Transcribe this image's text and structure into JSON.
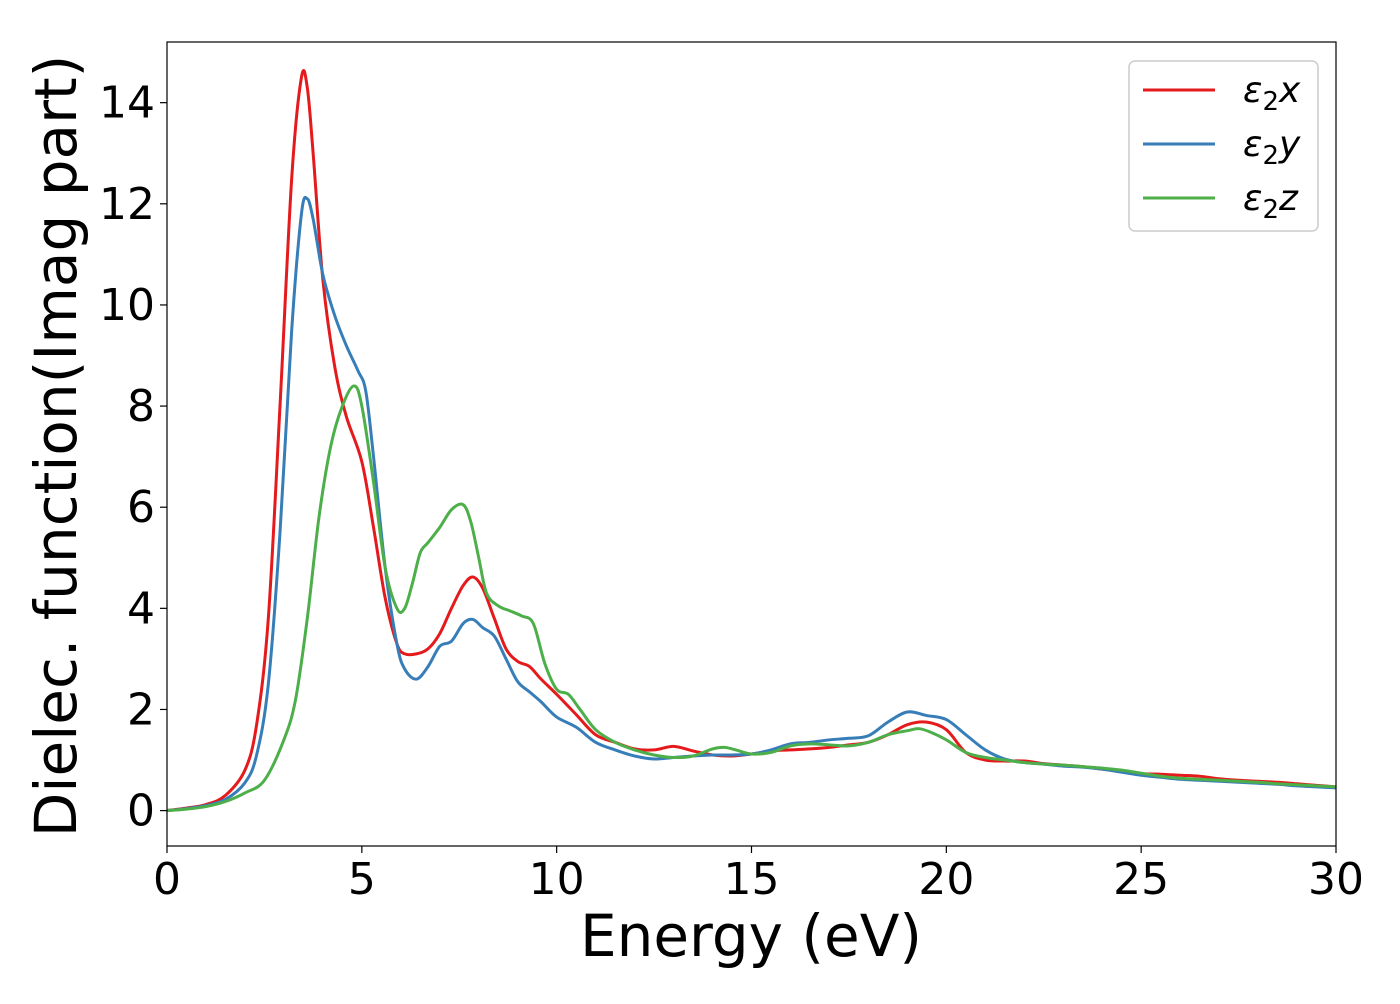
{
  "chart_data": {
    "type": "line",
    "xlabel": "Energy (eV)",
    "ylabel": "Dielec. function(Imag part)",
    "xlim": [
      0,
      30
    ],
    "ylim": [
      -0.7,
      15.2
    ],
    "xticks": [
      0,
      5,
      10,
      15,
      20,
      25,
      30
    ],
    "yticks": [
      0,
      2,
      4,
      6,
      8,
      10,
      12,
      14
    ],
    "grid": false,
    "legend_position": "top-right",
    "series": [
      {
        "name": "ε2x",
        "legend": {
          "symbol": "ε",
          "sub": "2",
          "suffix": "x"
        },
        "color": "#e41a1c",
        "x": [
          0,
          0.5,
          1.0,
          1.5,
          2.0,
          2.3,
          2.6,
          2.9,
          3.2,
          3.45,
          3.6,
          3.75,
          4.0,
          4.3,
          4.6,
          5.0,
          5.3,
          5.6,
          5.9,
          6.1,
          6.4,
          6.7,
          7.0,
          7.3,
          7.6,
          7.85,
          8.1,
          8.4,
          8.7,
          9.0,
          9.3,
          9.6,
          10.0,
          10.5,
          11.0,
          11.5,
          12.0,
          12.5,
          13.0,
          13.5,
          14.0,
          14.5,
          15.0,
          15.5,
          16.0,
          16.5,
          17.0,
          17.5,
          18.0,
          18.5,
          19.0,
          19.5,
          20.0,
          20.5,
          21.0,
          21.5,
          22.0,
          22.5,
          23.0,
          23.5,
          24.0,
          24.5,
          25.0,
          25.5,
          26.0,
          26.5,
          27.0,
          27.5,
          28.0,
          28.5,
          29.0,
          29.5,
          30.0
        ],
        "y": [
          0,
          0.05,
          0.12,
          0.3,
          0.8,
          1.7,
          3.8,
          8.0,
          12.5,
          14.5,
          14.3,
          13.0,
          10.5,
          8.8,
          7.8,
          6.9,
          5.6,
          4.2,
          3.3,
          3.1,
          3.1,
          3.2,
          3.5,
          4.0,
          4.45,
          4.62,
          4.4,
          3.8,
          3.2,
          2.95,
          2.85,
          2.6,
          2.3,
          1.9,
          1.5,
          1.35,
          1.22,
          1.2,
          1.27,
          1.18,
          1.1,
          1.08,
          1.12,
          1.18,
          1.2,
          1.22,
          1.25,
          1.3,
          1.35,
          1.5,
          1.7,
          1.75,
          1.6,
          1.15,
          1.0,
          0.98,
          0.98,
          0.93,
          0.9,
          0.87,
          0.82,
          0.78,
          0.73,
          0.72,
          0.7,
          0.68,
          0.63,
          0.6,
          0.58,
          0.56,
          0.53,
          0.5,
          0.47
        ]
      },
      {
        "name": "ε2y",
        "legend": {
          "symbol": "ε",
          "sub": "2",
          "suffix": "y"
        },
        "color": "#377eb8",
        "x": [
          0,
          0.5,
          1.0,
          1.5,
          2.0,
          2.3,
          2.6,
          2.9,
          3.2,
          3.45,
          3.6,
          3.75,
          4.0,
          4.3,
          4.6,
          4.9,
          5.1,
          5.3,
          5.6,
          5.9,
          6.1,
          6.4,
          6.7,
          7.0,
          7.3,
          7.6,
          7.85,
          8.1,
          8.4,
          8.7,
          9.0,
          9.3,
          9.6,
          10.0,
          10.5,
          11.0,
          11.5,
          12.0,
          12.5,
          13.0,
          13.5,
          14.0,
          14.5,
          15.0,
          15.5,
          16.0,
          16.5,
          17.0,
          17.5,
          18.0,
          18.5,
          19.0,
          19.5,
          20.0,
          20.5,
          21.0,
          21.5,
          22.0,
          22.5,
          23.0,
          23.5,
          24.0,
          24.5,
          25.0,
          25.5,
          26.0,
          26.5,
          27.0,
          27.5,
          28.0,
          28.5,
          29.0,
          29.5,
          30.0
        ],
        "y": [
          0,
          0.04,
          0.1,
          0.22,
          0.55,
          1.1,
          2.5,
          5.5,
          9.5,
          11.8,
          12.1,
          11.7,
          10.6,
          9.8,
          9.2,
          8.7,
          8.3,
          7.0,
          4.8,
          3.3,
          2.8,
          2.6,
          2.85,
          3.25,
          3.35,
          3.7,
          3.78,
          3.62,
          3.45,
          3.0,
          2.55,
          2.35,
          2.15,
          1.85,
          1.65,
          1.35,
          1.2,
          1.08,
          1.02,
          1.05,
          1.08,
          1.1,
          1.1,
          1.12,
          1.2,
          1.32,
          1.35,
          1.4,
          1.43,
          1.48,
          1.75,
          1.95,
          1.88,
          1.8,
          1.5,
          1.2,
          1.02,
          0.95,
          0.92,
          0.88,
          0.86,
          0.82,
          0.76,
          0.7,
          0.66,
          0.62,
          0.6,
          0.58,
          0.56,
          0.54,
          0.52,
          0.49,
          0.47,
          0.45
        ]
      },
      {
        "name": "ε2z",
        "legend": {
          "symbol": "ε",
          "sub": "2",
          "suffix": "z"
        },
        "color": "#4daf4a",
        "x": [
          0,
          0.5,
          1.0,
          1.5,
          2.0,
          2.5,
          3.0,
          3.3,
          3.6,
          3.9,
          4.2,
          4.5,
          4.8,
          5.0,
          5.3,
          5.6,
          5.9,
          6.1,
          6.3,
          6.5,
          6.7,
          7.0,
          7.3,
          7.6,
          7.8,
          8.0,
          8.2,
          8.5,
          8.8,
          9.1,
          9.4,
          9.7,
          10.0,
          10.3,
          10.6,
          11.0,
          11.5,
          12.0,
          12.5,
          13.0,
          13.5,
          14.0,
          14.3,
          14.6,
          15.0,
          15.5,
          16.0,
          16.5,
          17.0,
          17.5,
          18.0,
          18.5,
          19.0,
          19.3,
          19.6,
          20.0,
          20.5,
          21.0,
          21.5,
          22.0,
          22.5,
          23.0,
          23.5,
          24.0,
          24.5,
          25.0,
          25.5,
          26.0,
          26.5,
          27.0,
          27.5,
          28.0,
          28.5,
          29.0,
          29.5,
          30.0
        ],
        "y": [
          0,
          0.03,
          0.08,
          0.18,
          0.35,
          0.6,
          1.4,
          2.2,
          3.8,
          5.8,
          7.2,
          8.0,
          8.4,
          8.0,
          6.5,
          4.8,
          4.0,
          4.0,
          4.5,
          5.1,
          5.3,
          5.6,
          5.95,
          6.05,
          5.7,
          5.0,
          4.3,
          4.05,
          3.95,
          3.85,
          3.7,
          2.9,
          2.4,
          2.3,
          2.0,
          1.6,
          1.35,
          1.2,
          1.1,
          1.05,
          1.08,
          1.22,
          1.25,
          1.2,
          1.12,
          1.15,
          1.28,
          1.32,
          1.3,
          1.28,
          1.35,
          1.5,
          1.58,
          1.62,
          1.55,
          1.4,
          1.15,
          1.05,
          1.0,
          0.95,
          0.92,
          0.9,
          0.87,
          0.84,
          0.8,
          0.74,
          0.68,
          0.64,
          0.62,
          0.6,
          0.58,
          0.56,
          0.53,
          0.51,
          0.49,
          0.47
        ]
      }
    ]
  }
}
